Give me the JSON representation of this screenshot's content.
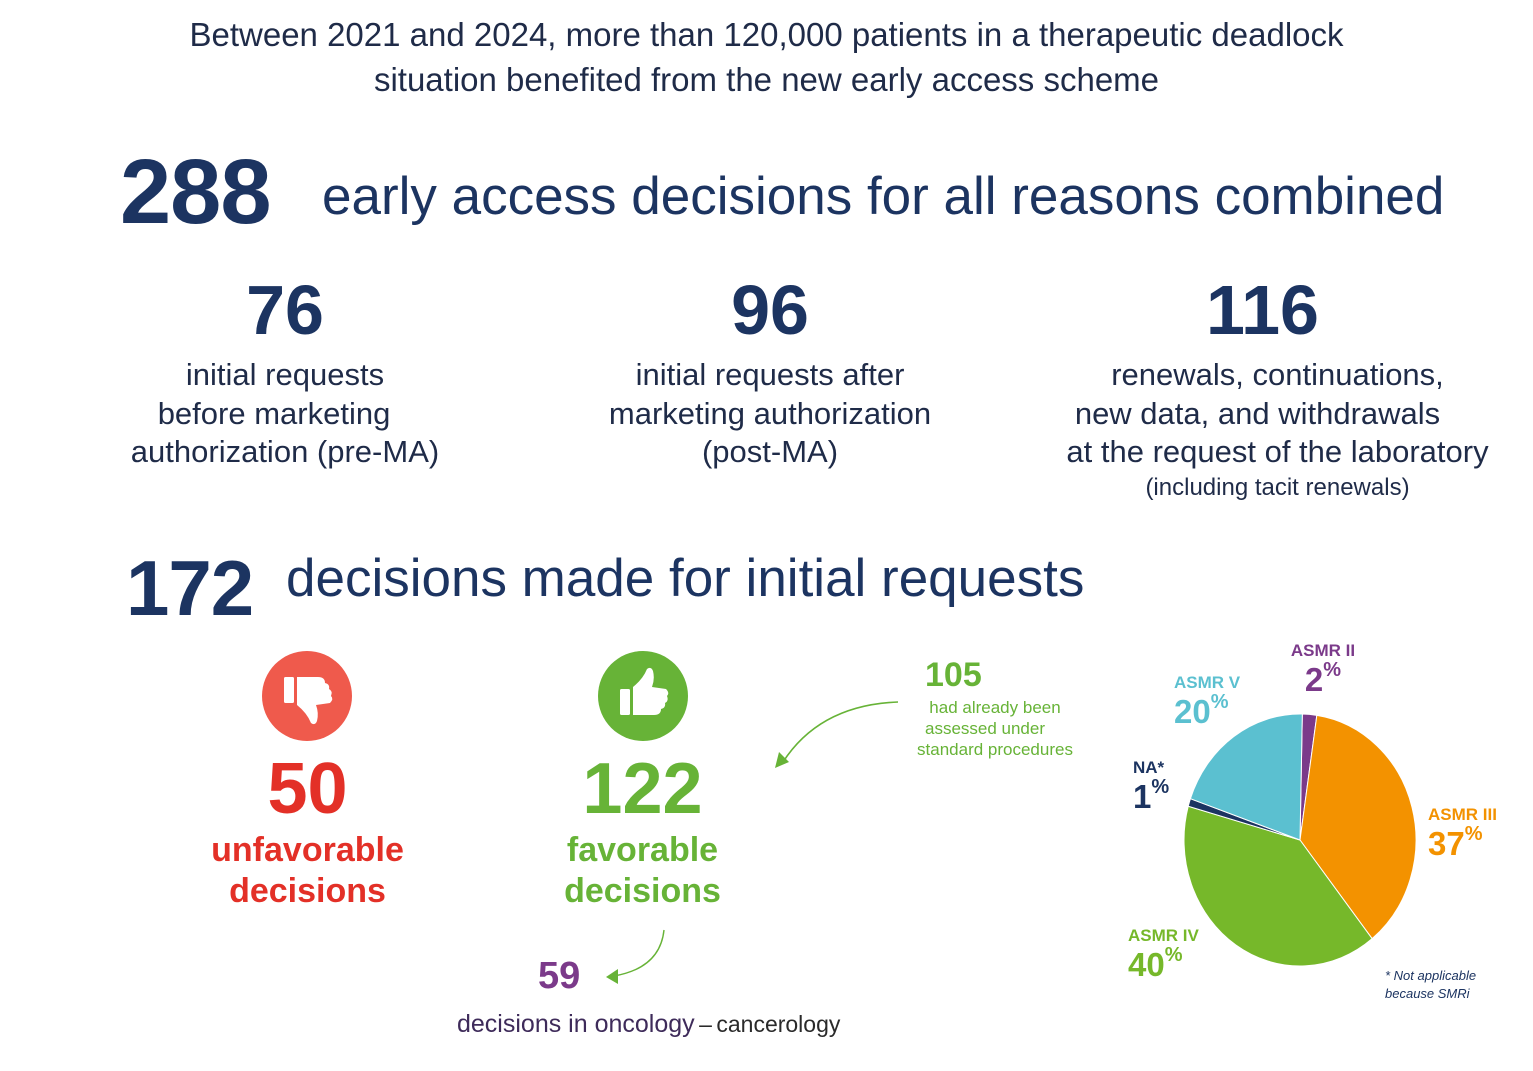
{
  "headline": {
    "line1": "Between 2021 and 2024, more than 120,000 patients in a therapeutic deadlock",
    "line2": "situation benefited from the new early access scheme"
  },
  "total": {
    "number": "288",
    "label": "early access decisions for all reasons combined"
  },
  "stats": [
    {
      "number": "76",
      "lines": [
        "initial requests",
        "before marketing",
        "authorization (pre-MA)"
      ]
    },
    {
      "number": "96",
      "lines": [
        "initial requests after",
        "marketing authorization",
        "(post-MA)"
      ]
    },
    {
      "number": "116",
      "lines": [
        "renewals, continuations,",
        "new data, and withdrawals",
        "at the request of the laboratory"
      ],
      "note": "(including tacit renewals)"
    }
  ],
  "initial": {
    "number": "172",
    "label": "decisions made for initial requests"
  },
  "unfavorable": {
    "number": "50",
    "line1": "unfavorable",
    "line2": "decisions",
    "icon": "thumbs-down-icon",
    "color": "#ef5a4c"
  },
  "favorable": {
    "number": "122",
    "line1": "favorable",
    "line2": "decisions",
    "icon": "thumbs-up-icon",
    "color": "#67b337"
  },
  "assessed_note": {
    "number": "105",
    "lines": [
      "had already been",
      "assessed under",
      "standard procedures"
    ]
  },
  "oncology": {
    "number": "59",
    "text": "decisions in oncology",
    "dash": "–",
    "text2": "cancerology"
  },
  "chart_data": {
    "type": "pie",
    "slices": [
      {
        "label": "ASMR II",
        "value": 2,
        "pct": "2",
        "color": "#7b3a8a"
      },
      {
        "label": "ASMR III",
        "value": 37,
        "pct": "37",
        "color": "#f39200"
      },
      {
        "label": "ASMR IV",
        "value": 40,
        "pct": "40",
        "color": "#76b82a"
      },
      {
        "label": "NA*",
        "value": 1,
        "pct": "1",
        "color": "#1c3461"
      },
      {
        "label": "ASMR V",
        "value": 20,
        "pct": "20",
        "color": "#5bc0d0"
      }
    ],
    "percent_sign": "%",
    "footnote": [
      "* Not applicable",
      "because SMRi"
    ]
  }
}
